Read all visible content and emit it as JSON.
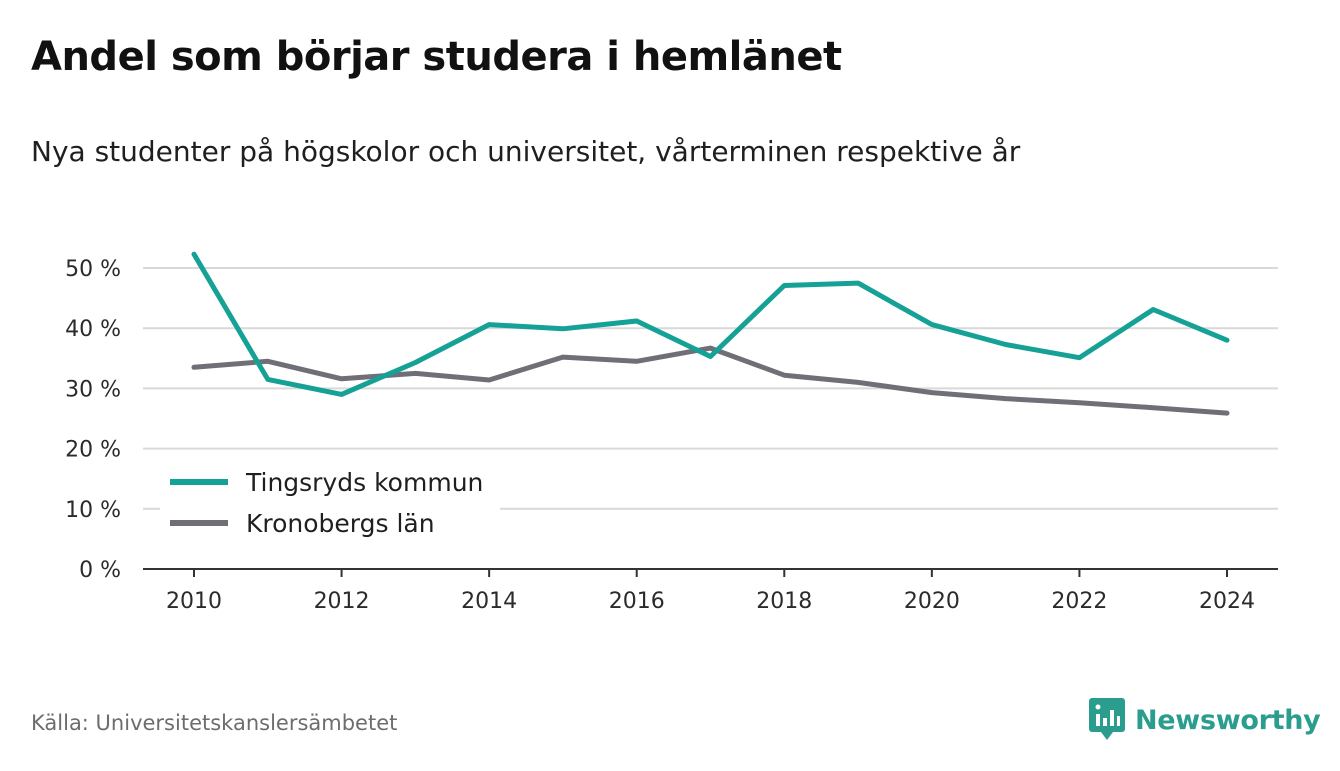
{
  "title": "Andel som börjar studera i hemlänet",
  "subtitle": "Nya studenter på högskolor och universitet, vårterminen respektive år",
  "source": "Källa: Universitetskanslersämbetet",
  "brand": {
    "name": "Newsworthy",
    "icon": "newsworthy-logo-icon",
    "color": "#2a9d8f"
  },
  "chart_data": {
    "type": "line",
    "x": [
      2010,
      2011,
      2012,
      2013,
      2014,
      2015,
      2016,
      2017,
      2018,
      2019,
      2020,
      2021,
      2022,
      2023,
      2024
    ],
    "series": [
      {
        "name": "Tingsryds kommun",
        "color": "#16a196",
        "values": [
          52.3,
          31.5,
          29.0,
          34.3,
          40.6,
          39.9,
          41.2,
          35.3,
          47.1,
          47.5,
          40.6,
          37.3,
          35.1,
          43.1,
          38.0
        ]
      },
      {
        "name": "Kronobergs län",
        "color": "#706f78",
        "values": [
          33.5,
          34.5,
          31.6,
          32.5,
          31.4,
          35.2,
          34.5,
          36.7,
          32.2,
          31.0,
          29.3,
          28.3,
          27.6,
          26.8,
          25.9
        ]
      }
    ],
    "xticks": [
      "2010",
      "2012",
      "2014",
      "2016",
      "2018",
      "2020",
      "2022",
      "2024"
    ],
    "yticks": [
      "0 %",
      "10 %",
      "20 %",
      "30 %",
      "40 %",
      "50 %"
    ],
    "ylim": [
      0,
      50
    ],
    "xlim": [
      2010,
      2024
    ],
    "grid": true,
    "legend_placement": "bottom-left"
  }
}
